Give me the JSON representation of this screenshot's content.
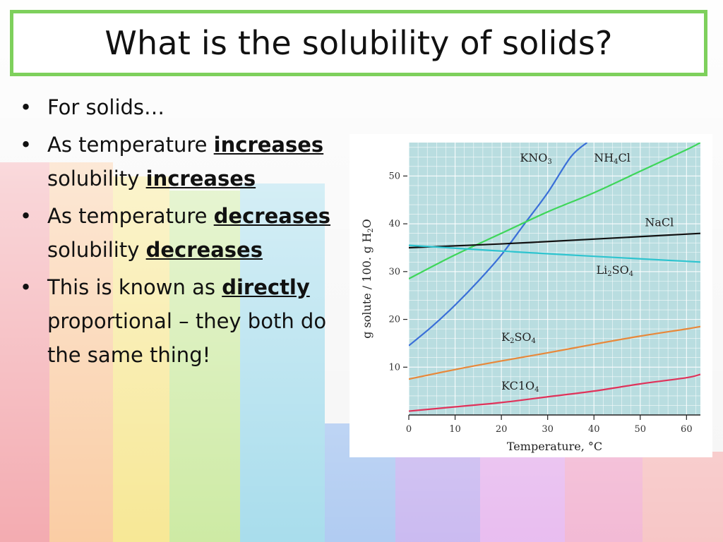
{
  "slide": {
    "title": "What is the solubility of solids?",
    "accent_color": "#7ed05c"
  },
  "bullets": [
    {
      "parts": [
        {
          "text": "For solids…",
          "bold": false
        }
      ]
    },
    {
      "parts": [
        {
          "text": "As temperature ",
          "bold": false
        },
        {
          "text": "increases",
          "bold": true
        },
        {
          "text": " solubility ",
          "bold": false
        },
        {
          "text": "increases",
          "bold": true
        }
      ]
    },
    {
      "parts": [
        {
          "text": "As temperature ",
          "bold": false
        },
        {
          "text": "decreases",
          "bold": true
        },
        {
          "text": " solubility ",
          "bold": false
        },
        {
          "text": "decreases",
          "bold": true
        }
      ]
    },
    {
      "parts": [
        {
          "text": "This is known as ",
          "bold": false
        },
        {
          "text": "directly",
          "bold": true
        },
        {
          "text": " proportional – they both do the same thing!",
          "bold": false
        }
      ]
    }
  ],
  "chart_data": {
    "type": "line",
    "title": "",
    "xlabel": "Temperature, °C",
    "ylabel": "g solute / 100. g H₂O",
    "xlim": [
      0,
      63
    ],
    "ylim": [
      0,
      57
    ],
    "xticks": [
      0,
      10,
      20,
      30,
      40,
      50,
      60
    ],
    "yticks": [
      10,
      20,
      30,
      40,
      50
    ],
    "grid": true,
    "series": [
      {
        "name": "KNO₃",
        "color": "#3a6fd8",
        "x": [
          0,
          5,
          10,
          15,
          20,
          25,
          30,
          35,
          38.5
        ],
        "y": [
          14.5,
          18.5,
          23,
          28,
          33.5,
          40,
          46.5,
          54,
          57
        ]
      },
      {
        "name": "NH₄Cl",
        "color": "#3ed65a",
        "x": [
          0,
          10,
          20,
          30,
          40,
          50,
          60,
          63
        ],
        "y": [
          28.5,
          33.5,
          38,
          42.5,
          46.5,
          51,
          55.5,
          57
        ]
      },
      {
        "name": "NaCl",
        "color": "#111111",
        "x": [
          0,
          20,
          40,
          63
        ],
        "y": [
          35,
          35.8,
          36.8,
          38
        ]
      },
      {
        "name": "Li₂SO₄",
        "color": "#2ec4cf",
        "x": [
          0,
          20,
          40,
          63
        ],
        "y": [
          35.5,
          34.3,
          33.2,
          32
        ]
      },
      {
        "name": "K₂SO₄",
        "color": "#e8883a",
        "x": [
          0,
          10,
          20,
          30,
          40,
          50,
          60,
          63
        ],
        "y": [
          7.5,
          9.5,
          11.3,
          13,
          14.8,
          16.5,
          18,
          18.5
        ]
      },
      {
        "name": "KClO₄",
        "color": "#e0325a",
        "x": [
          0,
          10,
          20,
          30,
          40,
          50,
          60,
          63
        ],
        "y": [
          0.8,
          1.7,
          2.6,
          3.8,
          5,
          6.5,
          7.8,
          8.5
        ]
      }
    ],
    "label_text": {
      "KNO3": {
        "main": "KNO",
        "sub": "3"
      },
      "NH4Cl": {
        "a": "NH",
        "sub": "4",
        "b": "Cl"
      },
      "NaCl": {
        "main": "NaCl"
      },
      "Li2SO4": {
        "a": "Li",
        "sub1": "2",
        "b": "SO",
        "sub2": "4"
      },
      "K2SO4": {
        "a": "K",
        "sub1": "2",
        "b": "SO",
        "sub2": "4"
      },
      "KClO4": {
        "a": "KC1O",
        "sub": "4"
      }
    },
    "ylabel_parts": {
      "main": "g solute / 100. g H",
      "sub": "2",
      "tail": "O"
    }
  }
}
